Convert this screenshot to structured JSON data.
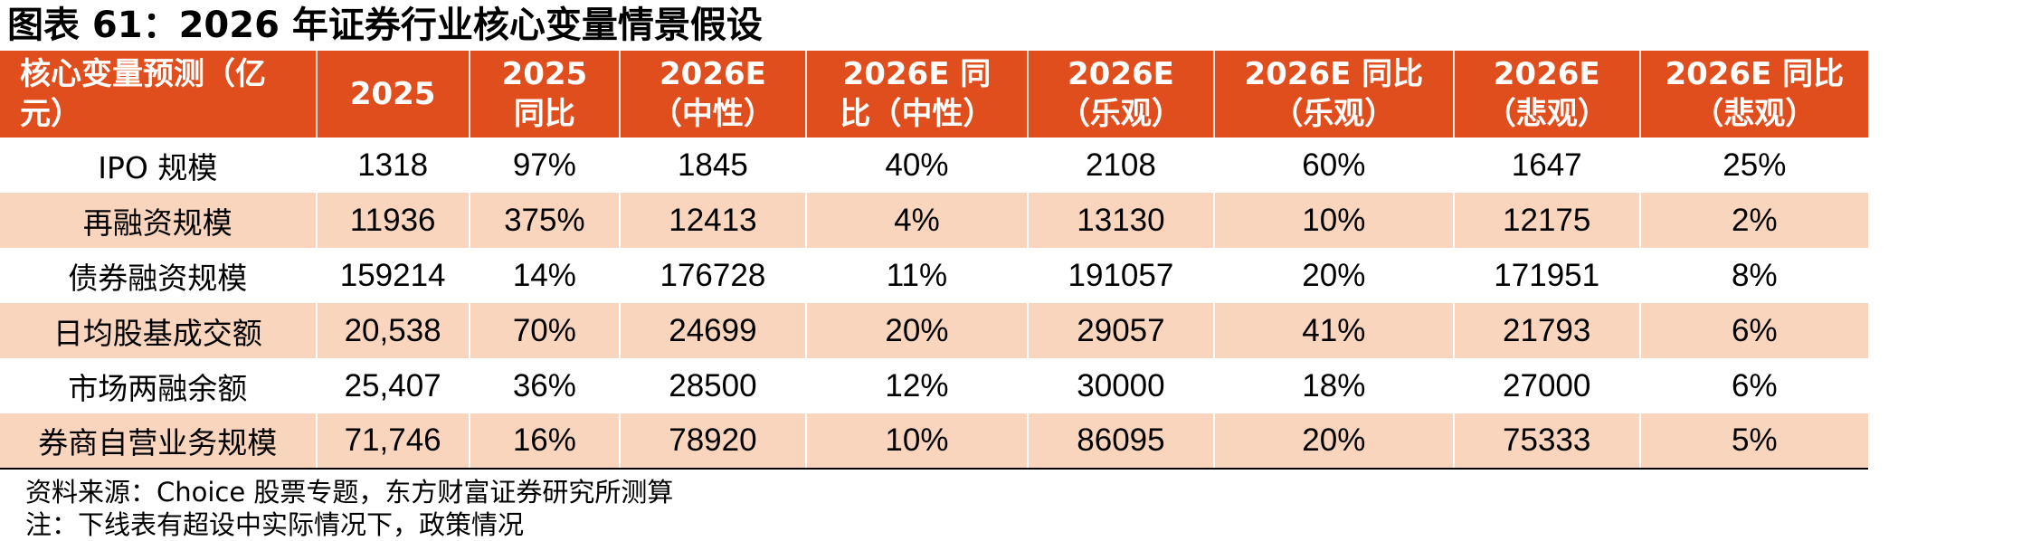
{
  "title": "图表 61：2026 年证券行业核心变量情景假设",
  "header": [
    [
      "核心变量预测（亿",
      "元）"
    ],
    [
      "2025"
    ],
    [
      "2025",
      "同比"
    ],
    [
      "2026E",
      "（中性）"
    ],
    [
      "2026E 同",
      "比（中性）"
    ],
    [
      "2026E",
      "（乐观）"
    ],
    [
      "2026E 同比",
      "（乐观）"
    ],
    [
      "2026E",
      "（悲观）"
    ],
    [
      "2026E 同比",
      "（悲观）"
    ]
  ],
  "rows": [
    [
      "IPO 规模",
      "1318",
      "97%",
      "1845",
      "40%",
      "2108",
      "60%",
      "1647",
      "25%"
    ],
    [
      "再融资规模",
      "11936",
      "375%",
      "12413",
      "4%",
      "13130",
      "10%",
      "12175",
      "2%"
    ],
    [
      "债券融资规模",
      "159214",
      "14%",
      "176728",
      "11%",
      "191057",
      "20%",
      "171951",
      "8%"
    ],
    [
      "日均股基成交额",
      "20,538",
      "70%",
      "24699",
      "20%",
      "29057",
      "41%",
      "21793",
      "6%"
    ],
    [
      "市场两融余额",
      "25,407",
      "36%",
      "28500",
      "12%",
      "30000",
      "18%",
      "27000",
      "6%"
    ],
    [
      "券商自营业务规模",
      "71,746",
      "16%",
      "78920",
      "10%",
      "86095",
      "20%",
      "75333",
      "5%"
    ]
  ],
  "source": "资料来源：Choice 股票专题，东方财富证券研究所测算",
  "note": "注：下线表有超设中实际情况下，政策情况",
  "colors": {
    "header_bg": "#e04e1e",
    "header_text": "#ffffff",
    "shade_row": "#f9d5bd"
  }
}
